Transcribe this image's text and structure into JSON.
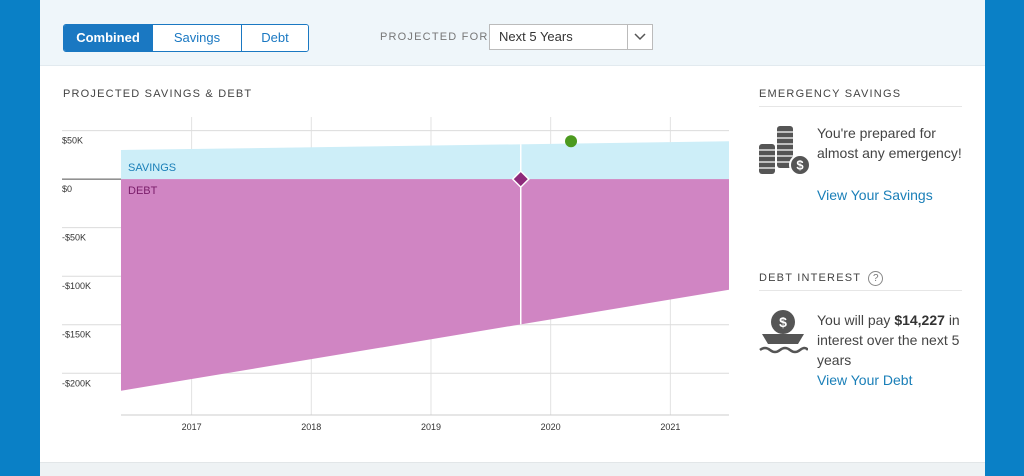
{
  "tabs": [
    "Combined",
    "Savings",
    "Debt"
  ],
  "projected_for_label": "PROJECTED FOR",
  "projected_for_value": "Next 5 Years",
  "emergency": {
    "title": "EMERGENCY SAVINGS",
    "text": "You're prepared for almost any emergency!",
    "link": "View Your Savings"
  },
  "debt_interest": {
    "title": "DEBT INTEREST",
    "help": "?",
    "text_before": "You will pay",
    "amount": "$14,227",
    "text_after": "in interest over the next 5 years",
    "link": "View Your Debt"
  },
  "chart_data": {
    "type": "area",
    "title": "PROJECTED SAVINGS & DEBT",
    "x": [
      2016.41,
      2021.49
    ],
    "series": [
      {
        "name": "SAVINGS",
        "color": "#cdeef8",
        "label_color": "#1a7fb8",
        "values": [
          30000,
          39000
        ]
      },
      {
        "name": "DEBT",
        "color": "#d085c3",
        "label_color": "#7a1d6a",
        "values": [
          -218000,
          -114000
        ]
      }
    ],
    "xlim": [
      2016.41,
      2021.49
    ],
    "xticks": [
      2017,
      2018,
      2019,
      2020,
      2021
    ],
    "ylim": [
      -243000,
      64000
    ],
    "yticks": [
      {
        "value": 50000,
        "label": "$50K"
      },
      {
        "value": 0,
        "label": "$0"
      },
      {
        "value": -50000,
        "label": "-$50K"
      },
      {
        "value": -100000,
        "label": "-$100K"
      },
      {
        "value": -150000,
        "label": "-$150K"
      },
      {
        "value": -200000,
        "label": "-$200K"
      }
    ],
    "grid": true,
    "cursor_x": 2019.75,
    "cursor_color": "#8e2a7b",
    "marker": {
      "x": 2020.17,
      "y": 39000,
      "color": "#4c9a1f"
    }
  }
}
